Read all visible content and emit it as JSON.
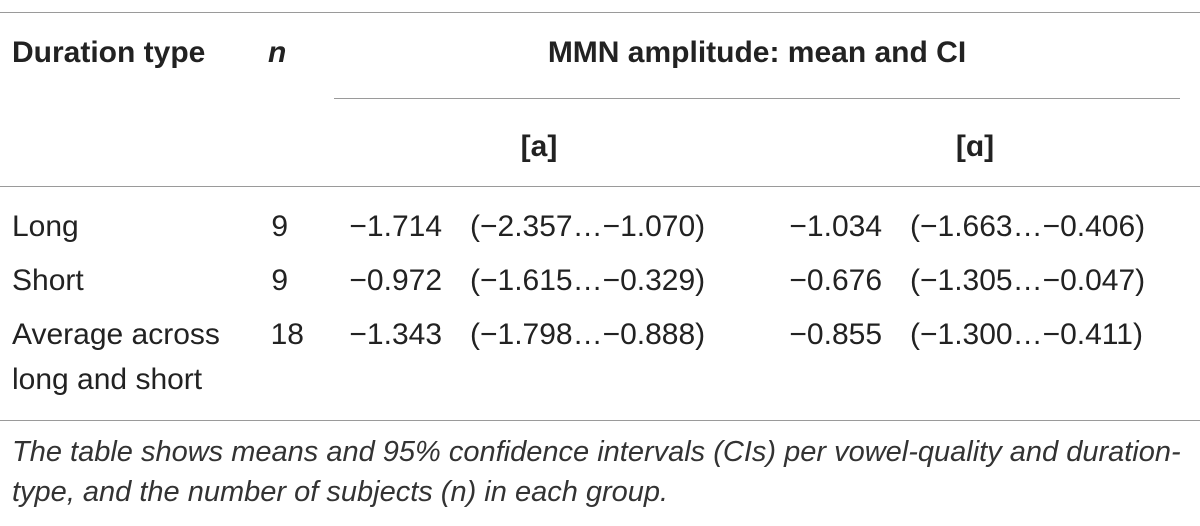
{
  "header": {
    "col_duration": "Duration type",
    "col_n": "n",
    "col_group": "MMN amplitude: mean and CI",
    "sub_a": "[a]",
    "sub_alpha": "[ɑ]"
  },
  "rows": [
    {
      "label": "Long",
      "n": "9",
      "a_mean": "−1.714",
      "a_ci": "(−2.357…−1.070)",
      "alpha_mean": "−1.034",
      "alpha_ci": "(−1.663…−0.406)"
    },
    {
      "label": "Short",
      "n": "9",
      "a_mean": "−0.972",
      "a_ci": "(−1.615…−0.329)",
      "alpha_mean": "−0.676",
      "alpha_ci": "(−1.305…−0.047)"
    },
    {
      "label_line1": "Average across",
      "label_line2": "long and short",
      "n": "18",
      "a_mean": "−1.343",
      "a_ci": "(−1.798…−0.888)",
      "alpha_mean": "−0.855",
      "alpha_ci": "(−1.300…−0.411)"
    }
  ],
  "note": "The table shows means and 95% confidence intervals (CIs) per vowel-quality and duration-type, and the number of subjects (n) in each group."
}
